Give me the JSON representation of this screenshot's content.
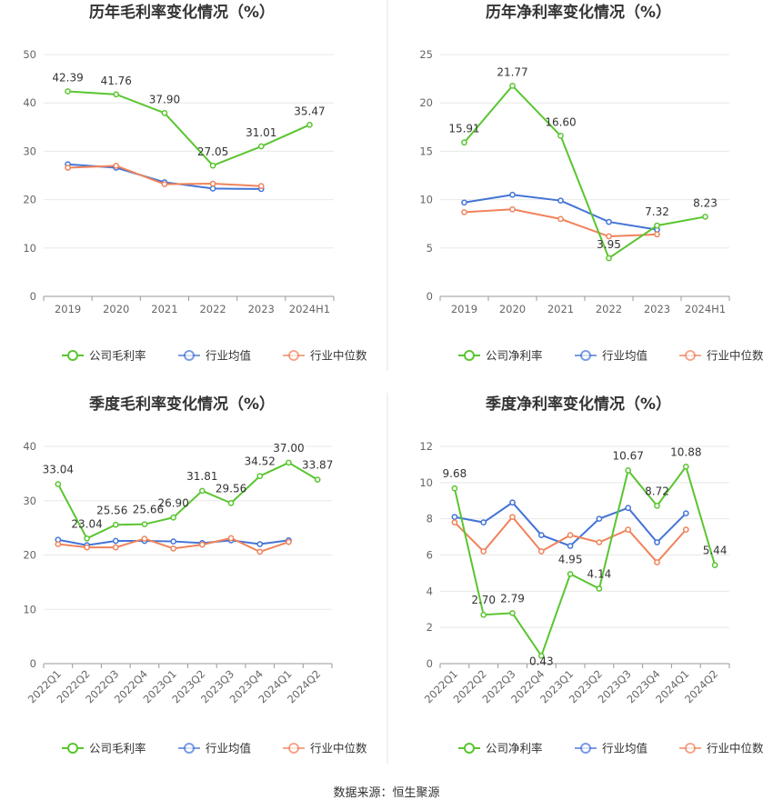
{
  "chart_data": [
    {
      "type": "line",
      "title": "历年毛利率变化情况（%）",
      "categories": [
        "2019",
        "2020",
        "2021",
        "2022",
        "2023",
        "2024H1"
      ],
      "ylim": [
        0,
        50
      ],
      "yticks": [
        0,
        10,
        20,
        30,
        40,
        50
      ],
      "grid": true,
      "legend_position": "bottom",
      "series": [
        {
          "name": "公司毛利率",
          "color": "#5ac530",
          "values": [
            42.39,
            41.76,
            37.9,
            27.05,
            31.01,
            35.47
          ],
          "labels": [
            "42.39",
            "41.76",
            "37.90",
            "27.05",
            "31.01",
            "35.47"
          ]
        },
        {
          "name": "行业均值",
          "color": "#4374d6",
          "values": [
            27.3,
            26.6,
            23.6,
            22.3,
            22.2,
            null
          ]
        },
        {
          "name": "行业中位数",
          "color": "#f0835b",
          "values": [
            26.6,
            27.0,
            23.2,
            23.3,
            22.8,
            null
          ]
        }
      ]
    },
    {
      "type": "line",
      "title": "历年净利率变化情况（%）",
      "categories": [
        "2019",
        "2020",
        "2021",
        "2022",
        "2023",
        "2024H1"
      ],
      "ylim": [
        0,
        25
      ],
      "yticks": [
        0,
        5,
        10,
        15,
        20,
        25
      ],
      "grid": true,
      "legend_position": "bottom",
      "series": [
        {
          "name": "公司净利率",
          "color": "#5ac530",
          "values": [
            15.91,
            21.77,
            16.6,
            3.95,
            7.32,
            8.23
          ],
          "labels": [
            "15.91",
            "21.77",
            "16.60",
            "3.95",
            "7.32",
            "8.23"
          ]
        },
        {
          "name": "行业均值",
          "color": "#4374d6",
          "values": [
            9.7,
            10.5,
            9.9,
            7.7,
            6.9,
            null
          ]
        },
        {
          "name": "行业中位数",
          "color": "#f0835b",
          "values": [
            8.7,
            9.0,
            8.0,
            6.2,
            6.4,
            null
          ]
        }
      ]
    },
    {
      "type": "line",
      "title": "季度毛利率变化情况（%）",
      "categories": [
        "2022Q1",
        "2022Q2",
        "2022Q3",
        "2022Q4",
        "2023Q1",
        "2023Q2",
        "2023Q3",
        "2023Q4",
        "2024Q1",
        "2024Q2"
      ],
      "ylim": [
        0,
        40
      ],
      "yticks": [
        0,
        10,
        20,
        30,
        40
      ],
      "grid": true,
      "legend_position": "bottom",
      "series": [
        {
          "name": "公司毛利率",
          "color": "#5ac530",
          "values": [
            33.04,
            23.04,
            25.56,
            25.66,
            26.9,
            31.81,
            29.56,
            34.52,
            37.0,
            33.87
          ],
          "labels": [
            "33.04",
            "23.04",
            "25.56",
            "25.66",
            "26.90",
            "31.81",
            "29.56",
            "34.52",
            "37.00",
            "33.87"
          ]
        },
        {
          "name": "行业均值",
          "color": "#4374d6",
          "values": [
            22.8,
            21.8,
            22.6,
            22.6,
            22.5,
            22.2,
            22.7,
            22.0,
            22.7,
            null
          ]
        },
        {
          "name": "行业中位数",
          "color": "#f0835b",
          "values": [
            22.0,
            21.4,
            21.4,
            23.0,
            21.2,
            21.9,
            23.1,
            20.6,
            22.4,
            null
          ]
        }
      ]
    },
    {
      "type": "line",
      "title": "季度净利率变化情况（%）",
      "categories": [
        "2022Q1",
        "2022Q2",
        "2022Q3",
        "2022Q4",
        "2023Q1",
        "2023Q2",
        "2023Q3",
        "2023Q4",
        "2024Q1",
        "2024Q2"
      ],
      "ylim": [
        0,
        12
      ],
      "yticks": [
        0,
        2,
        4,
        6,
        8,
        10,
        12
      ],
      "grid": true,
      "legend_position": "bottom",
      "series": [
        {
          "name": "公司净利率",
          "color": "#5ac530",
          "values": [
            9.68,
            2.7,
            2.79,
            0.43,
            4.95,
            4.14,
            10.67,
            8.72,
            10.88,
            5.44
          ],
          "labels": [
            "9.68",
            "2.70",
            "2.79",
            "0.43",
            "4.95",
            "4.14",
            "10.67",
            "8.72",
            "10.88",
            "5.44"
          ]
        },
        {
          "name": "行业均值",
          "color": "#4374d6",
          "values": [
            8.1,
            7.8,
            8.9,
            7.1,
            6.5,
            8.0,
            8.6,
            6.7,
            8.3,
            null
          ]
        },
        {
          "name": "行业中位数",
          "color": "#f0835b",
          "values": [
            7.8,
            6.2,
            8.1,
            6.2,
            7.1,
            6.7,
            7.4,
            5.6,
            7.4,
            null
          ]
        }
      ]
    }
  ],
  "footer": {
    "source": "数据来源：恒生聚源"
  }
}
